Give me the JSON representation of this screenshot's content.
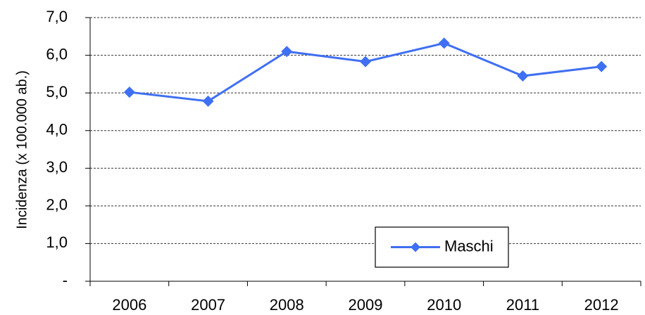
{
  "chart_data": {
    "type": "line",
    "y_label": "Incidenza (x 100.000 ab.)",
    "categories": [
      "2006",
      "2007",
      "2008",
      "2009",
      "2010",
      "2011",
      "2012"
    ],
    "series": [
      {
        "name": "Maschi",
        "color": "#3f6ff2",
        "values": [
          5.02,
          4.78,
          6.1,
          5.83,
          6.32,
          5.45,
          5.7
        ]
      }
    ],
    "ylim": [
      0,
      7
    ],
    "yticks": [
      {
        "value": 0,
        "label": "-"
      },
      {
        "value": 1,
        "label": "1,0"
      },
      {
        "value": 2,
        "label": "2,0"
      },
      {
        "value": 3,
        "label": "3,0"
      },
      {
        "value": 4,
        "label": "4,0"
      },
      {
        "value": 5,
        "label": "5,0"
      },
      {
        "value": 6,
        "label": "6,0"
      },
      {
        "value": 7,
        "label": "7,0"
      }
    ],
    "grid": true,
    "legend": "bottom-center"
  }
}
